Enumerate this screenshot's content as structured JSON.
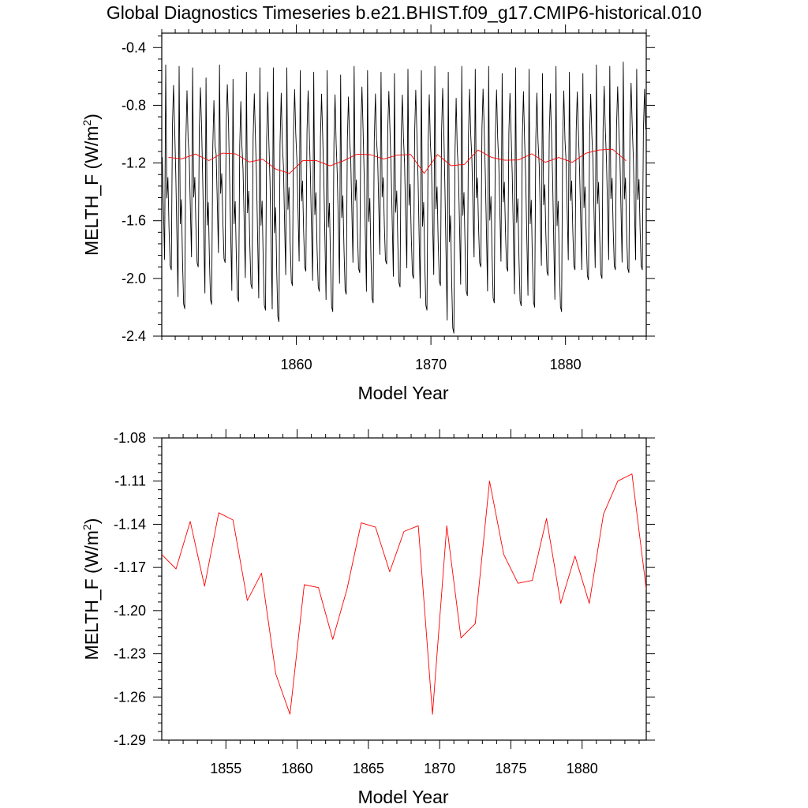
{
  "title": "Global Diagnostics Timeseries b.e21.BHIST.f09_g17.CMIP6-historical.010",
  "chart_data": [
    {
      "type": "line",
      "title": "Global Diagnostics Timeseries b.e21.BHIST.f09_g17.CMIP6-historical.010",
      "xlabel": "Model Year",
      "ylabel": "MELTH_F (W/m²)",
      "ylabel_base": "MELTH_F (W/m",
      "ylabel_sup": "2",
      "ylabel_close": ")",
      "xlim": [
        1850,
        1886
      ],
      "ylim": [
        -2.4,
        -0.3
      ],
      "xticks": [
        1860,
        1870,
        1880
      ],
      "xtick_labels": [
        "1860",
        "1870",
        "1880"
      ],
      "yticks": [
        -2.4,
        -2.0,
        -1.6,
        -1.2,
        -0.8,
        -0.4
      ],
      "ytick_labels": [
        "-2.4",
        "-2.0",
        "-1.6",
        "-1.2",
        "-0.8",
        "-0.4"
      ],
      "series": [
        {
          "color": "#000000",
          "kind": "monthly",
          "start_year": 1850,
          "values_per_year": 12,
          "annual_min": [
            -1.94,
            -2.21,
            -1.92,
            -2.18,
            -1.89,
            -2.16,
            -2.07,
            -2.22,
            -2.3,
            -2.05,
            -1.95,
            -2.09,
            -2.23,
            -2.11,
            -1.96,
            -2.17,
            -1.9,
            -2.06,
            -2.0,
            -2.22,
            -2.05,
            -2.38,
            -2.12,
            -1.92,
            -2.17,
            -1.95,
            -2.19,
            -2.2,
            -1.98,
            -2.23,
            -1.94,
            -2.01,
            -2.0,
            -1.94,
            -1.96,
            -1.94
          ],
          "annual_max": [
            -0.52,
            -0.53,
            -0.54,
            -0.61,
            -0.52,
            -0.62,
            -0.57,
            -0.54,
            -0.54,
            -0.54,
            -0.56,
            -0.57,
            -0.56,
            -0.59,
            -0.53,
            -0.56,
            -0.57,
            -0.58,
            -0.55,
            -0.56,
            -0.53,
            -0.57,
            -0.53,
            -0.55,
            -0.53,
            -0.58,
            -0.54,
            -0.55,
            -0.58,
            -0.53,
            -0.57,
            -0.58,
            -0.52,
            -0.53,
            -0.5,
            -0.55
          ]
        },
        {
          "color": "#ff0000",
          "kind": "annual",
          "x": [
            1850.5,
            1851.5,
            1852.5,
            1853.5,
            1854.5,
            1855.5,
            1856.5,
            1857.5,
            1858.5,
            1859.5,
            1860.5,
            1861.5,
            1862.5,
            1863.5,
            1864.5,
            1865.5,
            1866.5,
            1867.5,
            1868.5,
            1869.5,
            1870.5,
            1871.5,
            1872.5,
            1873.5,
            1874.5,
            1875.5,
            1876.5,
            1877.5,
            1878.5,
            1879.5,
            1880.5,
            1881.5,
            1882.5,
            1883.5,
            1884.5
          ],
          "values": [
            -1.161,
            -1.171,
            -1.138,
            -1.183,
            -1.132,
            -1.137,
            -1.193,
            -1.174,
            -1.244,
            -1.272,
            -1.182,
            -1.184,
            -1.22,
            -1.185,
            -1.139,
            -1.142,
            -1.173,
            -1.145,
            -1.141,
            -1.272,
            -1.141,
            -1.219,
            -1.209,
            -1.11,
            -1.161,
            -1.181,
            -1.179,
            -1.136,
            -1.195,
            -1.162,
            -1.195,
            -1.133,
            -1.11,
            -1.105,
            -1.185
          ]
        }
      ]
    },
    {
      "type": "line",
      "xlabel": "Model Year",
      "ylabel": "MELTH_F (W/m²)",
      "ylabel_base": "MELTH_F (W/m",
      "ylabel_sup": "2",
      "ylabel_close": ")",
      "xlim": [
        1850.5,
        1884.5
      ],
      "ylim": [
        -1.29,
        -1.08
      ],
      "xticks": [
        1855,
        1860,
        1865,
        1870,
        1875,
        1880
      ],
      "xtick_labels": [
        "1855",
        "1860",
        "1865",
        "1870",
        "1875",
        "1880"
      ],
      "yticks": [
        -1.29,
        -1.26,
        -1.23,
        -1.2,
        -1.17,
        -1.14,
        -1.11,
        -1.08
      ],
      "ytick_labels": [
        "-1.29",
        "-1.26",
        "-1.23",
        "-1.20",
        "-1.17",
        "-1.14",
        "-1.11",
        "-1.08"
      ],
      "series": [
        {
          "color": "#ff0000",
          "kind": "annual",
          "x": [
            1850.5,
            1851.5,
            1852.5,
            1853.5,
            1854.5,
            1855.5,
            1856.5,
            1857.5,
            1858.5,
            1859.5,
            1860.5,
            1861.5,
            1862.5,
            1863.5,
            1864.5,
            1865.5,
            1866.5,
            1867.5,
            1868.5,
            1869.5,
            1870.5,
            1871.5,
            1872.5,
            1873.5,
            1874.5,
            1875.5,
            1876.5,
            1877.5,
            1878.5,
            1879.5,
            1880.5,
            1881.5,
            1882.5,
            1883.5,
            1884.5
          ],
          "values": [
            -1.161,
            -1.171,
            -1.138,
            -1.183,
            -1.132,
            -1.137,
            -1.193,
            -1.174,
            -1.244,
            -1.272,
            -1.182,
            -1.184,
            -1.22,
            -1.185,
            -1.139,
            -1.142,
            -1.173,
            -1.145,
            -1.141,
            -1.272,
            -1.141,
            -1.219,
            -1.209,
            -1.11,
            -1.161,
            -1.181,
            -1.179,
            -1.136,
            -1.195,
            -1.162,
            -1.195,
            -1.133,
            -1.11,
            -1.105,
            -1.185
          ]
        }
      ]
    }
  ]
}
